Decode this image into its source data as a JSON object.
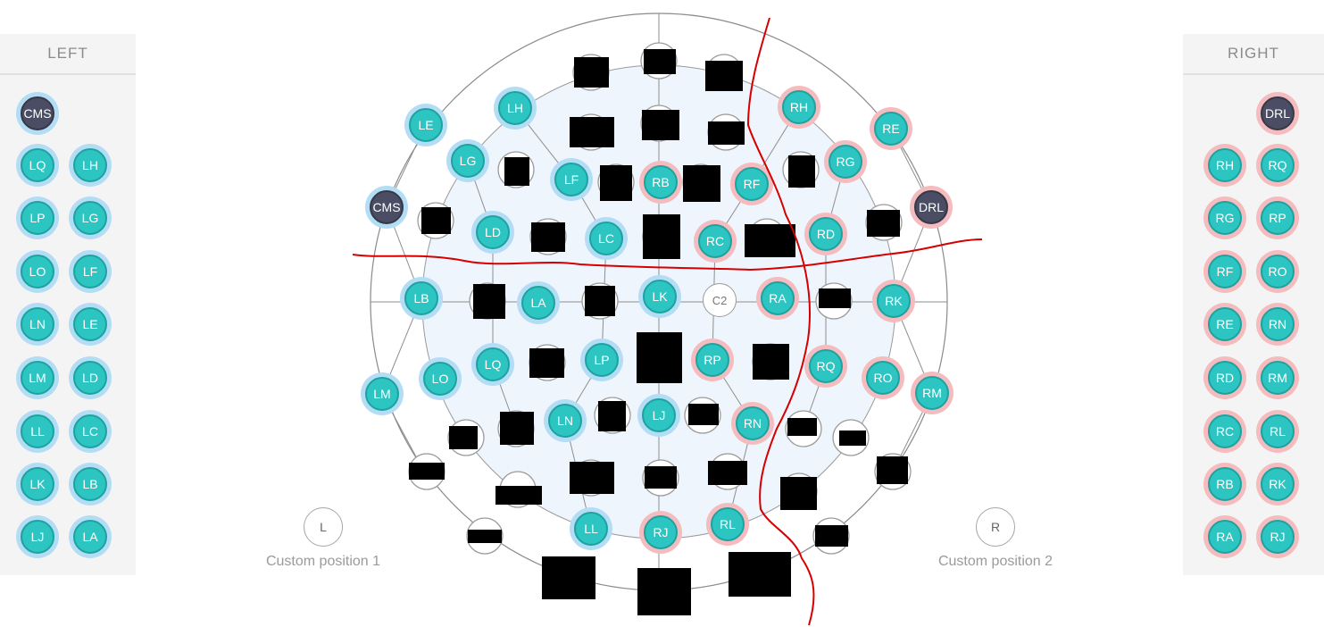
{
  "left_panel": {
    "title": "LEFT",
    "electrodes": [
      "CMS",
      "LQ",
      "LH",
      "LP",
      "LG",
      "LO",
      "LF",
      "LN",
      "LE",
      "LM",
      "LD",
      "LL",
      "LC",
      "LK",
      "LB",
      "LJ",
      "LA"
    ]
  },
  "right_panel": {
    "title": "RIGHT",
    "electrodes": [
      "DRL",
      "RH",
      "RQ",
      "RG",
      "RP",
      "RF",
      "RO",
      "RE",
      "RN",
      "RD",
      "RM",
      "RC",
      "RL",
      "RB",
      "RK",
      "RA",
      "RJ"
    ]
  },
  "head_map": {
    "electrodes": [
      {
        "label": "LE",
        "side": "left"
      },
      {
        "label": "LH",
        "side": "left"
      },
      {
        "label": "LG",
        "side": "left"
      },
      {
        "label": "LF",
        "side": "left"
      },
      {
        "label": "RB",
        "side": "right"
      },
      {
        "label": "RF",
        "side": "right"
      },
      {
        "label": "RH",
        "side": "right"
      },
      {
        "label": "RE",
        "side": "right"
      },
      {
        "label": "RG",
        "side": "right"
      },
      {
        "label": "CMS",
        "side": "cms"
      },
      {
        "label": "LD",
        "side": "left"
      },
      {
        "label": "LC",
        "side": "left"
      },
      {
        "label": "RC",
        "side": "right"
      },
      {
        "label": "RD",
        "side": "right"
      },
      {
        "label": "DRL",
        "side": "drl"
      },
      {
        "label": "LB",
        "side": "left"
      },
      {
        "label": "LA",
        "side": "left"
      },
      {
        "label": "LK",
        "side": "left"
      },
      {
        "label": "C2",
        "side": "empty"
      },
      {
        "label": "RA",
        "side": "right"
      },
      {
        "label": "RK",
        "side": "right"
      },
      {
        "label": "LQ",
        "side": "left"
      },
      {
        "label": "LP",
        "side": "left"
      },
      {
        "label": "RP",
        "side": "right"
      },
      {
        "label": "RQ",
        "side": "right"
      },
      {
        "label": "LO",
        "side": "left"
      },
      {
        "label": "LM",
        "side": "left"
      },
      {
        "label": "RO",
        "side": "right"
      },
      {
        "label": "RM",
        "side": "right"
      },
      {
        "label": "LN",
        "side": "left"
      },
      {
        "label": "LJ",
        "side": "left"
      },
      {
        "label": "RN",
        "side": "right"
      },
      {
        "label": "LL",
        "side": "left"
      },
      {
        "label": "RJ",
        "side": "right"
      },
      {
        "label": "RL",
        "side": "right"
      }
    ]
  },
  "custom_positions": [
    {
      "letter": "L",
      "label": "Custom position 1"
    },
    {
      "letter": "R",
      "label": "Custom position 2"
    }
  ],
  "colors": {
    "electrode_fill": "#2cc5c2",
    "left_halo": "#b3ddf5",
    "right_halo": "#f5bcc0",
    "reference_fill": "#4a4d63",
    "annotation_line": "#d60000"
  }
}
